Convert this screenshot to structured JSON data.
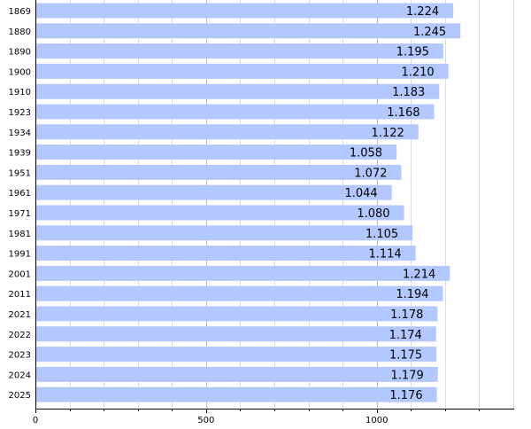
{
  "chart_data": {
    "type": "bar",
    "orientation": "horizontal",
    "categories": [
      "1869",
      "1880",
      "1890",
      "1900",
      "1910",
      "1923",
      "1934",
      "1939",
      "1951",
      "1961",
      "1971",
      "1981",
      "1991",
      "2001",
      "2011",
      "2021",
      "2022",
      "2023",
      "2024",
      "2025"
    ],
    "values": [
      1224,
      1245,
      1195,
      1210,
      1183,
      1168,
      1122,
      1058,
      1072,
      1044,
      1080,
      1105,
      1114,
      1214,
      1194,
      1178,
      1174,
      1175,
      1179,
      1176
    ],
    "value_labels": [
      "1.224",
      "1.245",
      "1.195",
      "1.210",
      "1.183",
      "1.168",
      "1.122",
      "1.058",
      "1.072",
      "1.044",
      "1.080",
      "1.105",
      "1.114",
      "1.214",
      "1.194",
      "1.178",
      "1.174",
      "1.175",
      "1.179",
      "1.176"
    ],
    "title": "",
    "xlabel": "",
    "ylabel": "",
    "xlim": [
      0,
      1400
    ],
    "major_ticks": [
      0,
      500,
      1000
    ],
    "tick_labels": [
      "0",
      "500",
      "1000"
    ],
    "minor_tick_step": 100,
    "grid": true,
    "legend": "none",
    "bar_color": "#b3c8ff"
  }
}
